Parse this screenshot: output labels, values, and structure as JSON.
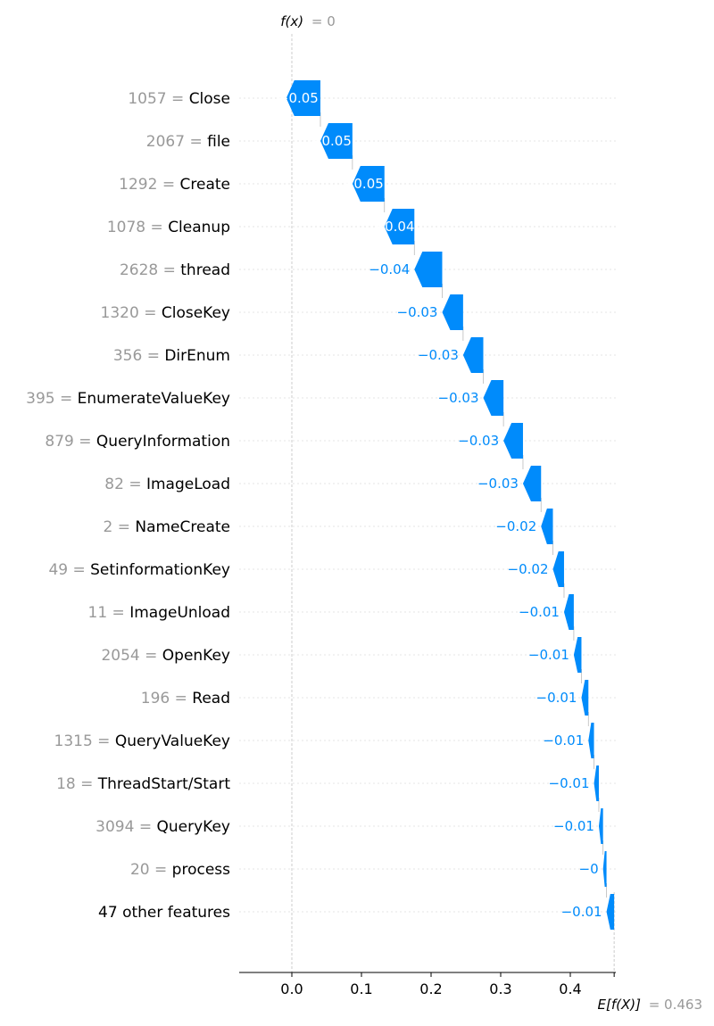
{
  "chart_data": {
    "type": "waterfall",
    "fx_label": "f(x)",
    "fx_value": "= 0",
    "ex_label": "E[f(X)]",
    "ex_value": "= 0.463",
    "base_value": 0.463,
    "output_value": 0,
    "xlim": [
      -0.075,
      0.465
    ],
    "xticks": [
      "0.0",
      "0.1",
      "0.2",
      "0.3",
      "0.4"
    ],
    "colors": {
      "negative": "#008bfb",
      "text_negative": "#008bfb",
      "grid": "#cccccc",
      "axis": "#000000",
      "muted": "#999999"
    },
    "features": [
      {
        "value": "1057 =",
        "name": "Close",
        "contribution": -0.049,
        "label": "−0.05"
      },
      {
        "value": "2067 =",
        "name": "file",
        "contribution": -0.046,
        "label": "−0.05"
      },
      {
        "value": "1292 =",
        "name": "Create",
        "contribution": -0.046,
        "label": "−0.05"
      },
      {
        "value": "1078 =",
        "name": "Cleanup",
        "contribution": -0.043,
        "label": "−0.04"
      },
      {
        "value": "2628 =",
        "name": "thread",
        "contribution": -0.04,
        "label": "−0.04"
      },
      {
        "value": "1320 =",
        "name": "CloseKey",
        "contribution": -0.03,
        "label": "−0.03"
      },
      {
        "value": "356 =",
        "name": "DirEnum",
        "contribution": -0.029,
        "label": "−0.03"
      },
      {
        "value": "395 =",
        "name": "EnumerateValueKey",
        "contribution": -0.029,
        "label": "−0.03"
      },
      {
        "value": "879 =",
        "name": "QueryInformation",
        "contribution": -0.028,
        "label": "−0.03"
      },
      {
        "value": "82 =",
        "name": "ImageLoad",
        "contribution": -0.026,
        "label": "−0.03"
      },
      {
        "value": "2 =",
        "name": "NameCreate",
        "contribution": -0.017,
        "label": "−0.02"
      },
      {
        "value": "49 =",
        "name": "SetinformationKey",
        "contribution": -0.016,
        "label": "−0.02"
      },
      {
        "value": "11 =",
        "name": "ImageUnload",
        "contribution": -0.014,
        "label": "−0.01"
      },
      {
        "value": "2054 =",
        "name": "OpenKey",
        "contribution": -0.011,
        "label": "−0.01"
      },
      {
        "value": "196 =",
        "name": "Read",
        "contribution": -0.01,
        "label": "−0.01"
      },
      {
        "value": "1315 =",
        "name": "QueryValueKey",
        "contribution": -0.008,
        "label": "−0.01"
      },
      {
        "value": "18 =",
        "name": "ThreadStart/Start",
        "contribution": -0.007,
        "label": "−0.01"
      },
      {
        "value": "3094 =",
        "name": "QueryKey",
        "contribution": -0.006,
        "label": "−0.01"
      },
      {
        "value": "20 =",
        "name": "process",
        "contribution": -0.005,
        "label": "−0"
      },
      {
        "value": "",
        "name": "47 other features",
        "contribution": -0.011,
        "label": "−0.01"
      }
    ]
  }
}
